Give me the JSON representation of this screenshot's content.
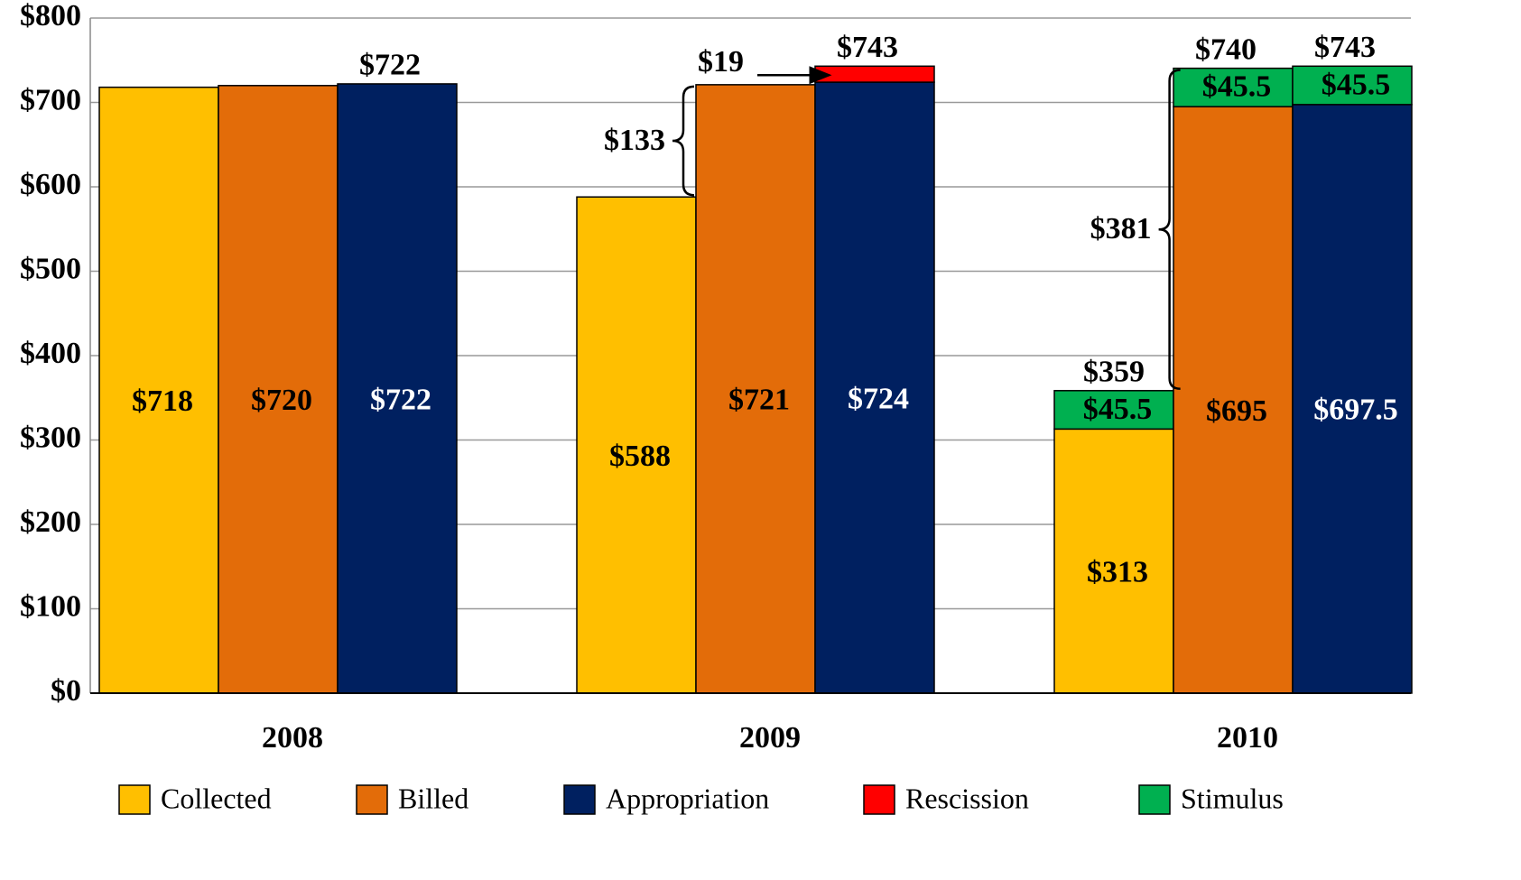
{
  "chart_data": {
    "type": "bar",
    "categories": [
      "2008",
      "2009",
      "2010"
    ],
    "series": [
      {
        "name": "Collected",
        "color": "#ffbf00"
      },
      {
        "name": "Billed",
        "color": "#e36c09"
      },
      {
        "name": "Appropriation",
        "color": "#002060"
      },
      {
        "name": "Rescission",
        "color": "#ff0000"
      },
      {
        "name": "Stimulus",
        "color": "#00b050"
      }
    ],
    "groups": [
      {
        "bars": [
          {
            "segments": [
              {
                "series": 0,
                "value": 718,
                "value_label": "$718"
              }
            ]
          },
          {
            "segments": [
              {
                "series": 1,
                "value": 720,
                "value_label": "$720"
              }
            ]
          },
          {
            "segments": [
              {
                "series": 2,
                "value": 722,
                "value_label": "$722"
              }
            ],
            "total": 722,
            "total_label": "$722"
          }
        ]
      },
      {
        "bars": [
          {
            "segments": [
              {
                "series": 0,
                "value": 588,
                "value_label": "$588"
              }
            ]
          },
          {
            "segments": [
              {
                "series": 1,
                "value": 721,
                "value_label": "$721"
              }
            ]
          },
          {
            "segments": [
              {
                "series": 2,
                "value": 724,
                "value_label": "$724"
              },
              {
                "series": 3,
                "value": 19,
                "value_label": "$19"
              }
            ],
            "total": 743,
            "total_label": "$743"
          }
        ],
        "difference": {
          "value": 133,
          "label": "$133"
        }
      },
      {
        "bars": [
          {
            "segments": [
              {
                "series": 0,
                "value": 313,
                "value_label": "$313"
              },
              {
                "series": 4,
                "value": 45.5,
                "value_label": "$45.5"
              }
            ],
            "total": 359,
            "total_label": "$359"
          },
          {
            "segments": [
              {
                "series": 1,
                "value": 695,
                "value_label": "$695"
              },
              {
                "series": 4,
                "value": 45.5,
                "value_label": "$45.5"
              }
            ],
            "total": 740,
            "total_label": "$740"
          },
          {
            "segments": [
              {
                "series": 2,
                "value": 697.5,
                "value_label": "$697.5"
              },
              {
                "series": 4,
                "value": 45.5,
                "value_label": "$45.5"
              }
            ],
            "total": 743,
            "total_label": "$743"
          }
        ],
        "difference": {
          "value": 381,
          "label": "$381"
        }
      }
    ],
    "ylim": [
      0,
      800
    ],
    "yticks": [
      {
        "value": 0,
        "label": "$0"
      },
      {
        "value": 100,
        "label": "$100"
      },
      {
        "value": 200,
        "label": "$200"
      },
      {
        "value": 300,
        "label": "$300"
      },
      {
        "value": 400,
        "label": "$400"
      },
      {
        "value": 500,
        "label": "$500"
      },
      {
        "value": 600,
        "label": "$600"
      },
      {
        "value": 700,
        "label": "$700"
      },
      {
        "value": 800,
        "label": "$800"
      }
    ],
    "grid": true
  }
}
